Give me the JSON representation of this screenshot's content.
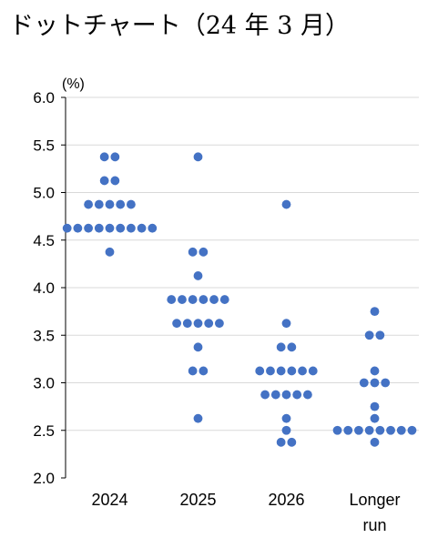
{
  "chart_data": {
    "type": "scatter",
    "title": "ドットチャート（24 年 3 月）",
    "ylabel": "(%)",
    "xlabel": "",
    "categories": [
      "2024",
      "2025",
      "2026",
      "Longer run"
    ],
    "ylim": [
      2.0,
      6.0
    ],
    "yticks": [
      "2.0",
      "2.5",
      "3.0",
      "3.5",
      "4.0",
      "4.5",
      "5.0",
      "5.5",
      "6.0"
    ],
    "grid": true,
    "dot_color": "#4472C4",
    "series": [
      {
        "category": "2024",
        "points": [
          {
            "y": 5.375,
            "count": 2
          },
          {
            "y": 5.125,
            "count": 2
          },
          {
            "y": 4.875,
            "count": 5
          },
          {
            "y": 4.625,
            "count": 9
          },
          {
            "y": 4.375,
            "count": 1
          }
        ]
      },
      {
        "category": "2025",
        "points": [
          {
            "y": 5.375,
            "count": 1
          },
          {
            "y": 4.375,
            "count": 2
          },
          {
            "y": 4.125,
            "count": 1
          },
          {
            "y": 3.875,
            "count": 6
          },
          {
            "y": 3.625,
            "count": 5
          },
          {
            "y": 3.375,
            "count": 1
          },
          {
            "y": 3.125,
            "count": 2
          },
          {
            "y": 2.625,
            "count": 1
          }
        ]
      },
      {
        "category": "2026",
        "points": [
          {
            "y": 4.875,
            "count": 1
          },
          {
            "y": 3.625,
            "count": 1
          },
          {
            "y": 3.375,
            "count": 2
          },
          {
            "y": 3.125,
            "count": 6
          },
          {
            "y": 2.875,
            "count": 5
          },
          {
            "y": 2.625,
            "count": 1
          },
          {
            "y": 2.5,
            "count": 1
          },
          {
            "y": 2.375,
            "count": 2
          }
        ]
      },
      {
        "category": "Longer run",
        "points": [
          {
            "y": 3.75,
            "count": 1
          },
          {
            "y": 3.5,
            "count": 2
          },
          {
            "y": 3.125,
            "count": 1
          },
          {
            "y": 3.0,
            "count": 3
          },
          {
            "y": 2.75,
            "count": 1
          },
          {
            "y": 2.625,
            "count": 1
          },
          {
            "y": 2.5,
            "count": 8
          },
          {
            "y": 2.375,
            "count": 1
          }
        ]
      }
    ]
  }
}
